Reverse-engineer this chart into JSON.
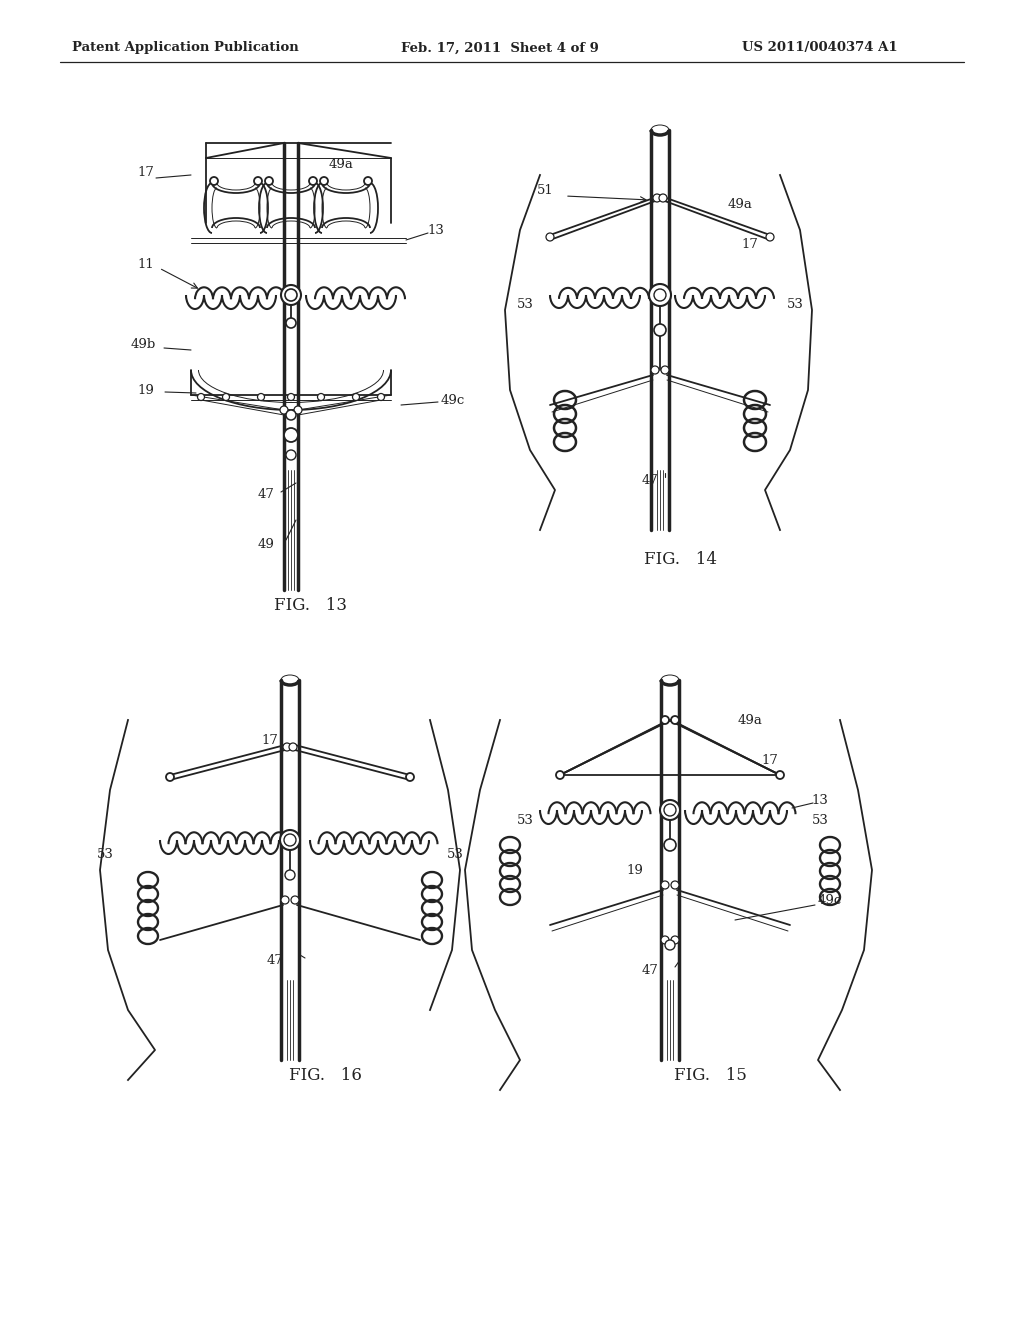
{
  "bg_color": "#ffffff",
  "line_color": "#222222",
  "header_left": "Patent Application Publication",
  "header_mid": "Feb. 17, 2011  Sheet 4 of 9",
  "header_right": "US 2011/0040374 A1",
  "fig13_label": "FIG.   13",
  "fig14_label": "FIG.   14",
  "fig15_label": "FIG.   15",
  "fig16_label": "FIG.   16",
  "fig_label_fontsize": 12,
  "header_fontsize": 9.5,
  "callout_fontsize": 9.5,
  "lw_main": 1.3,
  "lw_thick": 2.5,
  "lw_thin": 0.7,
  "lw_coil": 1.5
}
